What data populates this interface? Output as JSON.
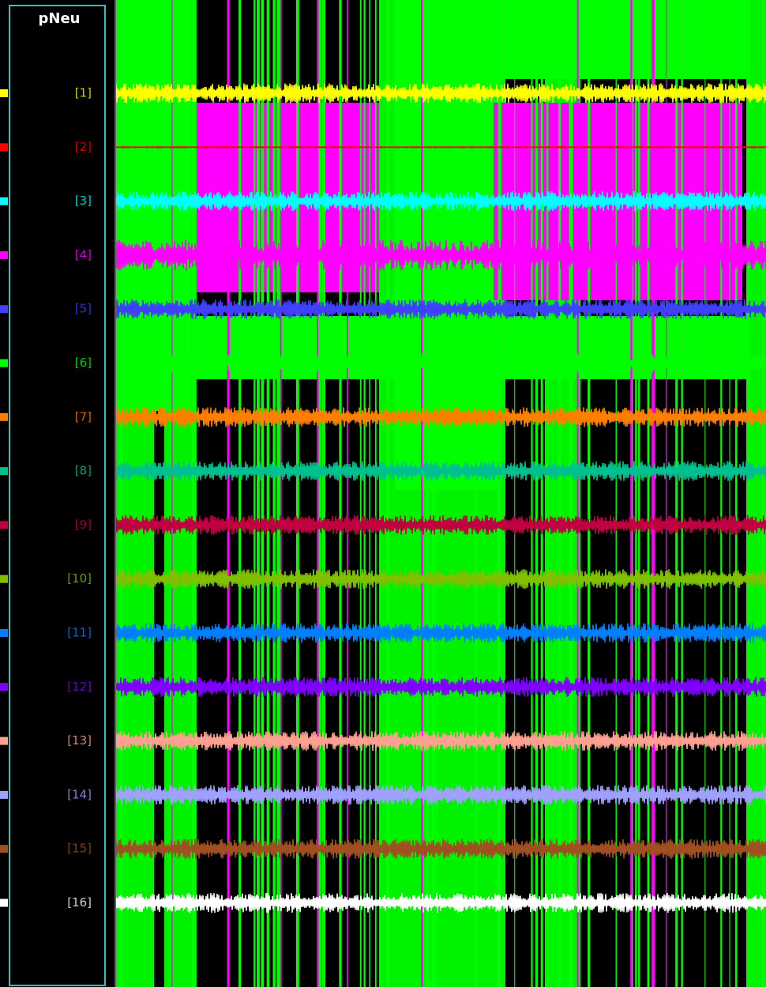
{
  "panel": {
    "title": "pNeu"
  },
  "channels": [
    {
      "label": "[1]",
      "color": "#ffff00"
    },
    {
      "label": "[2]",
      "color": "#ff0000"
    },
    {
      "label": "[3]",
      "color": "#00ffff"
    },
    {
      "label": "[4]",
      "color": "#ff00ff"
    },
    {
      "label": "[5]",
      "color": "#4040ff"
    },
    {
      "label": "[6]",
      "color": "#00ff00"
    },
    {
      "label": "[7]",
      "color": "#ff8000"
    },
    {
      "label": "[8]",
      "color": "#00c090"
    },
    {
      "label": "[9]",
      "color": "#c00040"
    },
    {
      "label": "[10]",
      "color": "#80c000"
    },
    {
      "label": "[11]",
      "color": "#0080ff"
    },
    {
      "label": "[12]",
      "color": "#8000ff"
    },
    {
      "label": "[13]",
      "color": "#ffa090"
    },
    {
      "label": "[14]",
      "color": "#a0a0ff"
    },
    {
      "label": "[15]",
      "color": "#a05020"
    },
    {
      "label": "[16]",
      "color": "#ffffff"
    }
  ]
}
